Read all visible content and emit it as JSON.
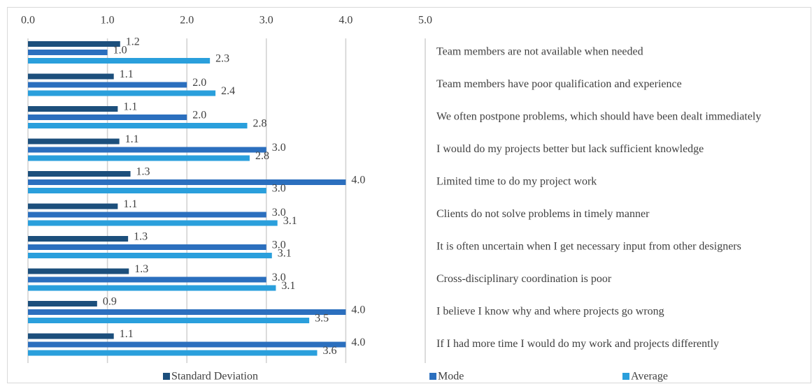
{
  "chart_data": {
    "type": "bar",
    "orientation": "horizontal",
    "categories": [
      "Team members are not available when needed",
      "Team members have poor qualification and experience",
      "We often postpone problems, which should have been dealt immediately",
      "I would do my projects better but lack sufficient knowledge",
      "Limited time to do my project work",
      "Clients do not solve problems in timely manner",
      "It is often uncertain when I get necessary input from other designers",
      "Cross-disciplinary coordination is poor",
      "I believe I know why and where projects go wrong",
      "If I had more time I would do my work and projects differently"
    ],
    "series": [
      {
        "name": "Standard Deviation",
        "color": "#1c4f7c",
        "values": [
          1.16,
          1.08,
          1.13,
          1.15,
          1.29,
          1.13,
          1.26,
          1.27,
          0.87,
          1.08
        ],
        "value_labels": [
          "1.2",
          "1.1",
          "1.1",
          "1.1",
          "1.3",
          "1.1",
          "1.3",
          "1.3",
          "0.9",
          "1.1"
        ]
      },
      {
        "name": "Mode",
        "color": "#2b6fbe",
        "values": [
          1,
          2,
          2,
          3,
          4,
          3,
          3,
          3,
          4,
          4
        ],
        "value_labels": [
          "1.0",
          "2.0",
          "2.0",
          "3.0",
          "4.0",
          "3.0",
          "3.0",
          "3.0",
          "4.0",
          "4.0"
        ]
      },
      {
        "name": "Average",
        "color": "#2a9fdc",
        "values": [
          2.29,
          2.36,
          2.76,
          2.79,
          3.0,
          3.14,
          3.07,
          3.12,
          3.54,
          3.64
        ],
        "value_labels": [
          "2.3",
          "2.4",
          "2.8",
          "2.8",
          "3.0",
          "3.1",
          "3.1",
          "3.1",
          "3.5",
          "3.6"
        ]
      }
    ],
    "xlim": [
      0,
      5
    ],
    "xticks": [
      {
        "value": 0,
        "label": "0.0"
      },
      {
        "value": 1,
        "label": "1.0"
      },
      {
        "value": 2,
        "label": "2.0"
      },
      {
        "value": 3,
        "label": "3.0"
      },
      {
        "value": 4,
        "label": "4.0"
      },
      {
        "value": 5,
        "label": "5.0"
      }
    ],
    "grid": true,
    "legend": "bottom"
  }
}
